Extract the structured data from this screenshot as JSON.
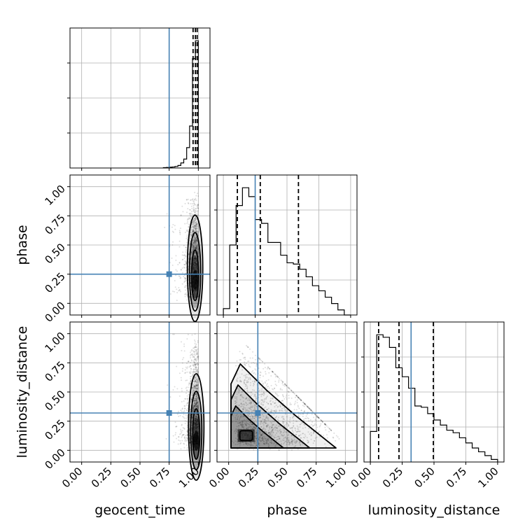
{
  "chart_data": {
    "type": "corner",
    "parameters": [
      "geocent_time",
      "phase",
      "luminosity_distance"
    ],
    "axis_range": [
      -0.1,
      1.1
    ],
    "ticks": [
      0.0,
      0.25,
      0.5,
      0.75,
      1.0
    ],
    "tick_labels": [
      "0.00",
      "0.25",
      "0.50",
      "0.75",
      "1.00"
    ],
    "grid": true,
    "truths": {
      "geocent_time": 0.75,
      "phase": 0.25,
      "luminosity_distance": 0.32
    },
    "truth_color": "#4682b4",
    "quantiles": {
      "geocent_time": [
        0.955,
        0.975,
        0.99
      ],
      "phase": [
        0.11,
        0.29,
        0.59
      ],
      "luminosity_distance": [
        0.065,
        0.225,
        0.495
      ]
    },
    "histograms": {
      "geocent_time": {
        "edges": [
          0.7,
          0.725,
          0.75,
          0.775,
          0.8,
          0.825,
          0.85,
          0.875,
          0.9,
          0.925,
          0.95,
          0.975,
          1.0
        ],
        "counts": [
          0.003,
          0.004,
          0.006,
          0.008,
          0.012,
          0.02,
          0.04,
          0.07,
          0.16,
          0.33,
          0.86,
          1.0
        ]
      },
      "phase": {
        "edges": [
          0.0,
          0.05,
          0.1,
          0.15,
          0.2,
          0.25,
          0.3,
          0.35,
          0.4,
          0.45,
          0.5,
          0.55,
          0.6,
          0.65,
          0.7,
          0.75,
          0.8,
          0.85,
          0.9,
          0.95,
          1.0
        ],
        "counts": [
          0.05,
          0.55,
          0.86,
          1.0,
          0.93,
          0.75,
          0.72,
          0.57,
          0.57,
          0.47,
          0.41,
          0.4,
          0.36,
          0.3,
          0.23,
          0.19,
          0.14,
          0.09,
          0.04,
          0.0
        ]
      },
      "luminosity_distance": {
        "edges": [
          0.0,
          0.05,
          0.1,
          0.15,
          0.2,
          0.25,
          0.3,
          0.35,
          0.4,
          0.45,
          0.5,
          0.55,
          0.6,
          0.65,
          0.7,
          0.75,
          0.8,
          0.85,
          0.9,
          0.95,
          1.0
        ],
        "counts": [
          0.24,
          1.0,
          0.98,
          0.9,
          0.74,
          0.67,
          0.58,
          0.44,
          0.43,
          0.38,
          0.33,
          0.29,
          0.25,
          0.23,
          0.19,
          0.15,
          0.11,
          0.08,
          0.05,
          0.02
        ]
      }
    },
    "density_peaks": {
      "phase_vs_geocent_time": [
        0.99,
        0.22
      ],
      "luminosity_distance_vs_geocent_time": [
        1.0,
        0.08
      ],
      "luminosity_distance_vs_phase": [
        0.15,
        0.12
      ]
    }
  }
}
